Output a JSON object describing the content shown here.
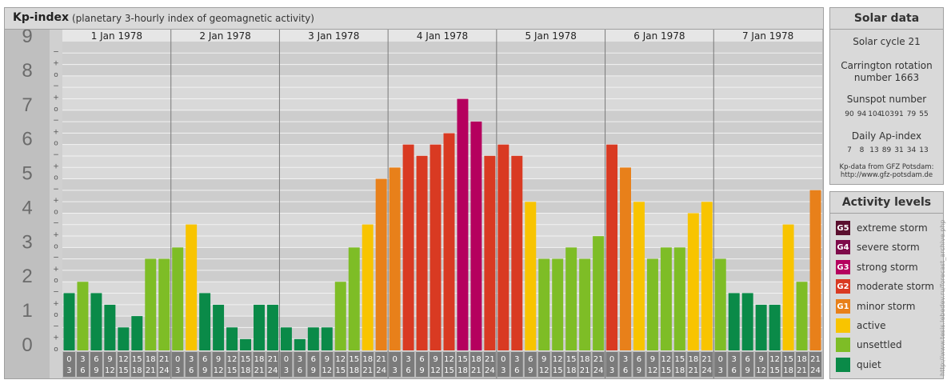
{
  "header": {
    "title": "Kp-index",
    "subtitle": "(planetary 3-hourly index of geomagnetic activity)"
  },
  "chart_data": {
    "type": "bar",
    "title": "Kp-index",
    "subtitle": "(planetary 3-hourly index of geomagnetic activity)",
    "ylim": [
      0,
      9
    ],
    "y_ticks": [
      "0",
      "1",
      "2",
      "3",
      "4",
      "5",
      "6",
      "7",
      "8",
      "9"
    ],
    "minor_tick_labels": [
      "o",
      "+",
      "−"
    ],
    "days": [
      "1 Jan 1978",
      "2 Jan 1978",
      "3 Jan 1978",
      "4 Jan 1978",
      "5 Jan 1978",
      "6 Jan 1978",
      "7 Jan 1978"
    ],
    "interval_labels": [
      [
        "0",
        "3"
      ],
      [
        "3",
        "6"
      ],
      [
        "6",
        "9"
      ],
      [
        "9",
        "12"
      ],
      [
        "12",
        "15"
      ],
      [
        "15",
        "18"
      ],
      [
        "18",
        "21"
      ],
      [
        "21",
        "24"
      ]
    ],
    "values": [
      1.67,
      2.0,
      1.67,
      1.33,
      0.67,
      1.0,
      2.67,
      2.67,
      3.0,
      3.67,
      1.67,
      1.33,
      0.67,
      0.33,
      1.33,
      1.33,
      0.67,
      0.33,
      0.67,
      0.67,
      2.0,
      3.0,
      3.67,
      5.0,
      5.33,
      6.0,
      5.67,
      6.0,
      6.33,
      7.33,
      6.67,
      5.67,
      6.0,
      5.67,
      4.33,
      2.67,
      2.67,
      3.0,
      2.67,
      3.33,
      6.0,
      5.33,
      4.33,
      2.67,
      3.0,
      3.0,
      4.0,
      4.33,
      2.67,
      1.67,
      1.67,
      1.33,
      1.33,
      3.67,
      2.0,
      4.67
    ]
  },
  "solar": {
    "title": "Solar data",
    "cycle": "Solar cycle 21",
    "carrington_line1": "Carrington rotation",
    "carrington_line2": "number 1663",
    "sunspot_title": "Sunspot number",
    "sunspot_values": [
      "90",
      "94",
      "104",
      "103",
      "91",
      "79",
      "55"
    ],
    "ap_title": "Daily Ap-index",
    "ap_values": [
      "7",
      "8",
      "13",
      "89",
      "31",
      "34",
      "13"
    ],
    "source_line1": "Kp-data from GFZ Potsdam:",
    "source_line2": "http://www.gfz-potsdam.de"
  },
  "activity": {
    "title": "Activity levels",
    "levels": [
      {
        "code": "G5",
        "label": "extreme storm",
        "color": "#5a0f2e"
      },
      {
        "code": "G4",
        "label": "severe storm",
        "color": "#7e0b4a"
      },
      {
        "code": "G3",
        "label": "strong storm",
        "color": "#b5005e"
      },
      {
        "code": "G2",
        "label": "moderate storm",
        "color": "#d93a22"
      },
      {
        "code": "G1",
        "label": "minor storm",
        "color": "#e8801a"
      },
      {
        "code": "",
        "label": "active",
        "color": "#f8c400"
      },
      {
        "code": "",
        "label": "unsettled",
        "color": "#7ebd26"
      },
      {
        "code": "",
        "label": "quiet",
        "color": "#0a8a48"
      }
    ]
  },
  "credit": "http://www.tesis.lebedev.ru/forecast_archive.php"
}
